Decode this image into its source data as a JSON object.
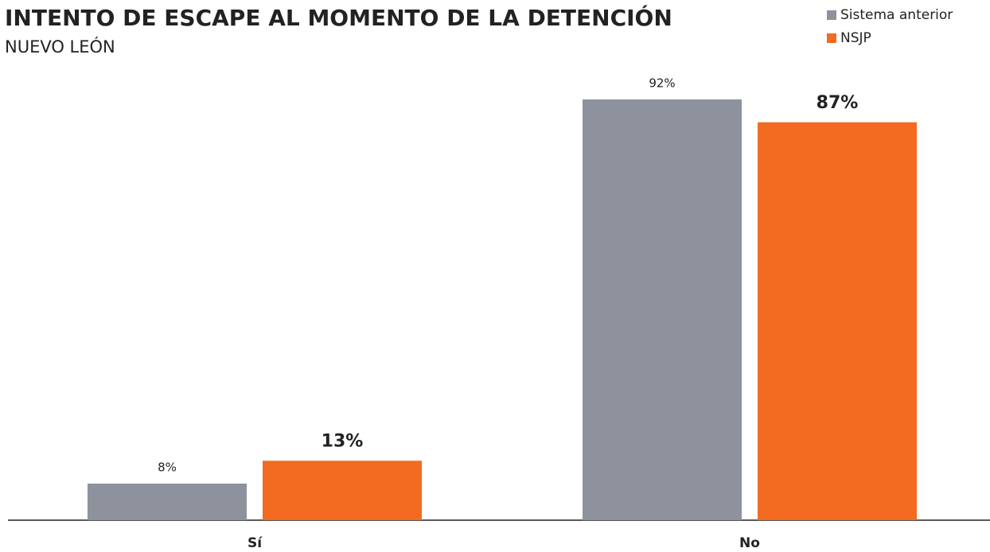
{
  "chart_data": {
    "type": "bar",
    "title": "INTENTO DE ESCAPE AL MOMENTO DE LA DETENCIÓN",
    "subtitle": "NUEVO LEÓN",
    "categories": [
      "Sí",
      "No"
    ],
    "series": [
      {
        "name": "Sistema anterior",
        "color": "#8e929c",
        "values": [
          8,
          92
        ],
        "value_labels": [
          "8%",
          "92%"
        ]
      },
      {
        "name": "NSJP",
        "color": "#f26b21",
        "values": [
          13,
          87
        ],
        "value_labels": [
          "13%",
          "87%"
        ]
      }
    ],
    "ylim": [
      0,
      100
    ],
    "legend": "top-right"
  }
}
